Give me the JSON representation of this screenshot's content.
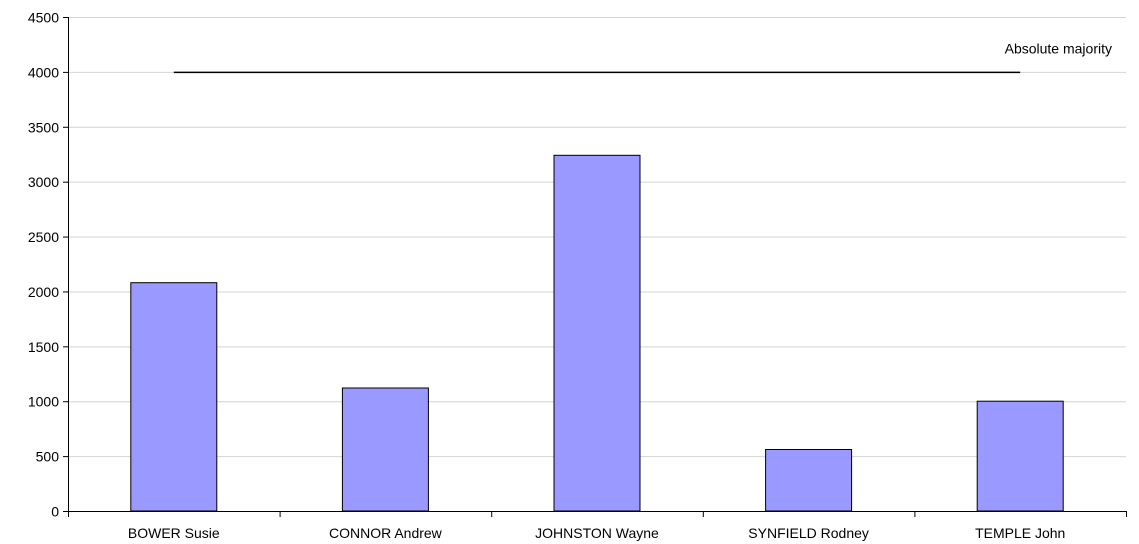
{
  "chart_data": {
    "type": "bar",
    "categories": [
      "BOWER Susie",
      "CONNOR Andrew",
      "JOHNSTON Wayne",
      "SYNFIELD Rodney",
      "TEMPLE John"
    ],
    "values": [
      2080,
      1120,
      3240,
      560,
      1000
    ],
    "ylim": [
      0,
      4500
    ],
    "yticks": [
      0,
      500,
      1000,
      1500,
      2000,
      2500,
      3000,
      3500,
      4000,
      4500
    ],
    "grid": true,
    "bar_color": "#9999ff",
    "annotation": {
      "label": "Absolute majority",
      "value": 4000
    }
  }
}
